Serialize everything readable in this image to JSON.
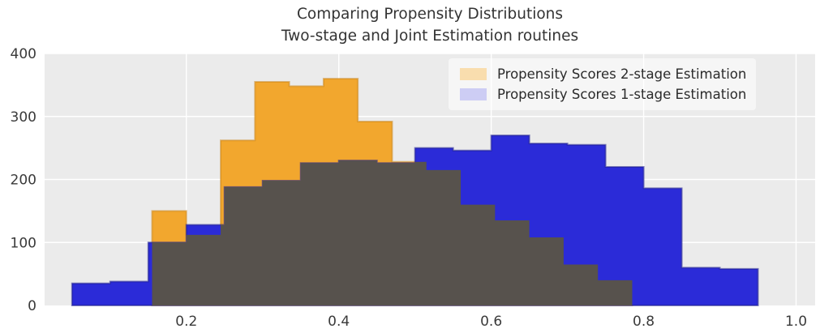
{
  "figure": {
    "title_line1": "Comparing Propensity Distributions",
    "title_line2": "Two-stage and Joint Estimation routines"
  },
  "chart_data": {
    "type": "bar",
    "subtype": "histogram",
    "title": "Comparing Propensity Distributions\nTwo-stage and Joint Estimation routines",
    "xlabel": "",
    "ylabel": "",
    "xlim": [
      0.014,
      1.025
    ],
    "ylim": [
      0,
      400
    ],
    "x_ticks": [
      0.2,
      0.4,
      0.6,
      0.8,
      1.0
    ],
    "y_ticks": [
      0,
      100,
      200,
      300,
      400
    ],
    "grid": true,
    "legend_position": "upper right",
    "plot_bg": "#ebebeb",
    "grid_color": "#ffffff",
    "overlap_color": "#57524d",
    "series": [
      {
        "name": "Propensity Scores 2-stage Estimation",
        "color": "#f2a72e",
        "legend_swatch_color": "#f9ddae",
        "bin_start": 0.155,
        "bin_width": 0.045,
        "counts": [
          150,
          112,
          262,
          355,
          348,
          360,
          292,
          228,
          215,
          160,
          135,
          108,
          65,
          40
        ]
      },
      {
        "name": "Propensity Scores 1-stage Estimation",
        "color": "#2b2bd8",
        "legend_swatch_color": "#cdcdf4",
        "bin_start": 0.05,
        "bin_width": 0.05,
        "counts": [
          35,
          38,
          100,
          128,
          188,
          198,
          226,
          230,
          226,
          250,
          246,
          270,
          257,
          255,
          220,
          186,
          60,
          58
        ]
      }
    ]
  }
}
